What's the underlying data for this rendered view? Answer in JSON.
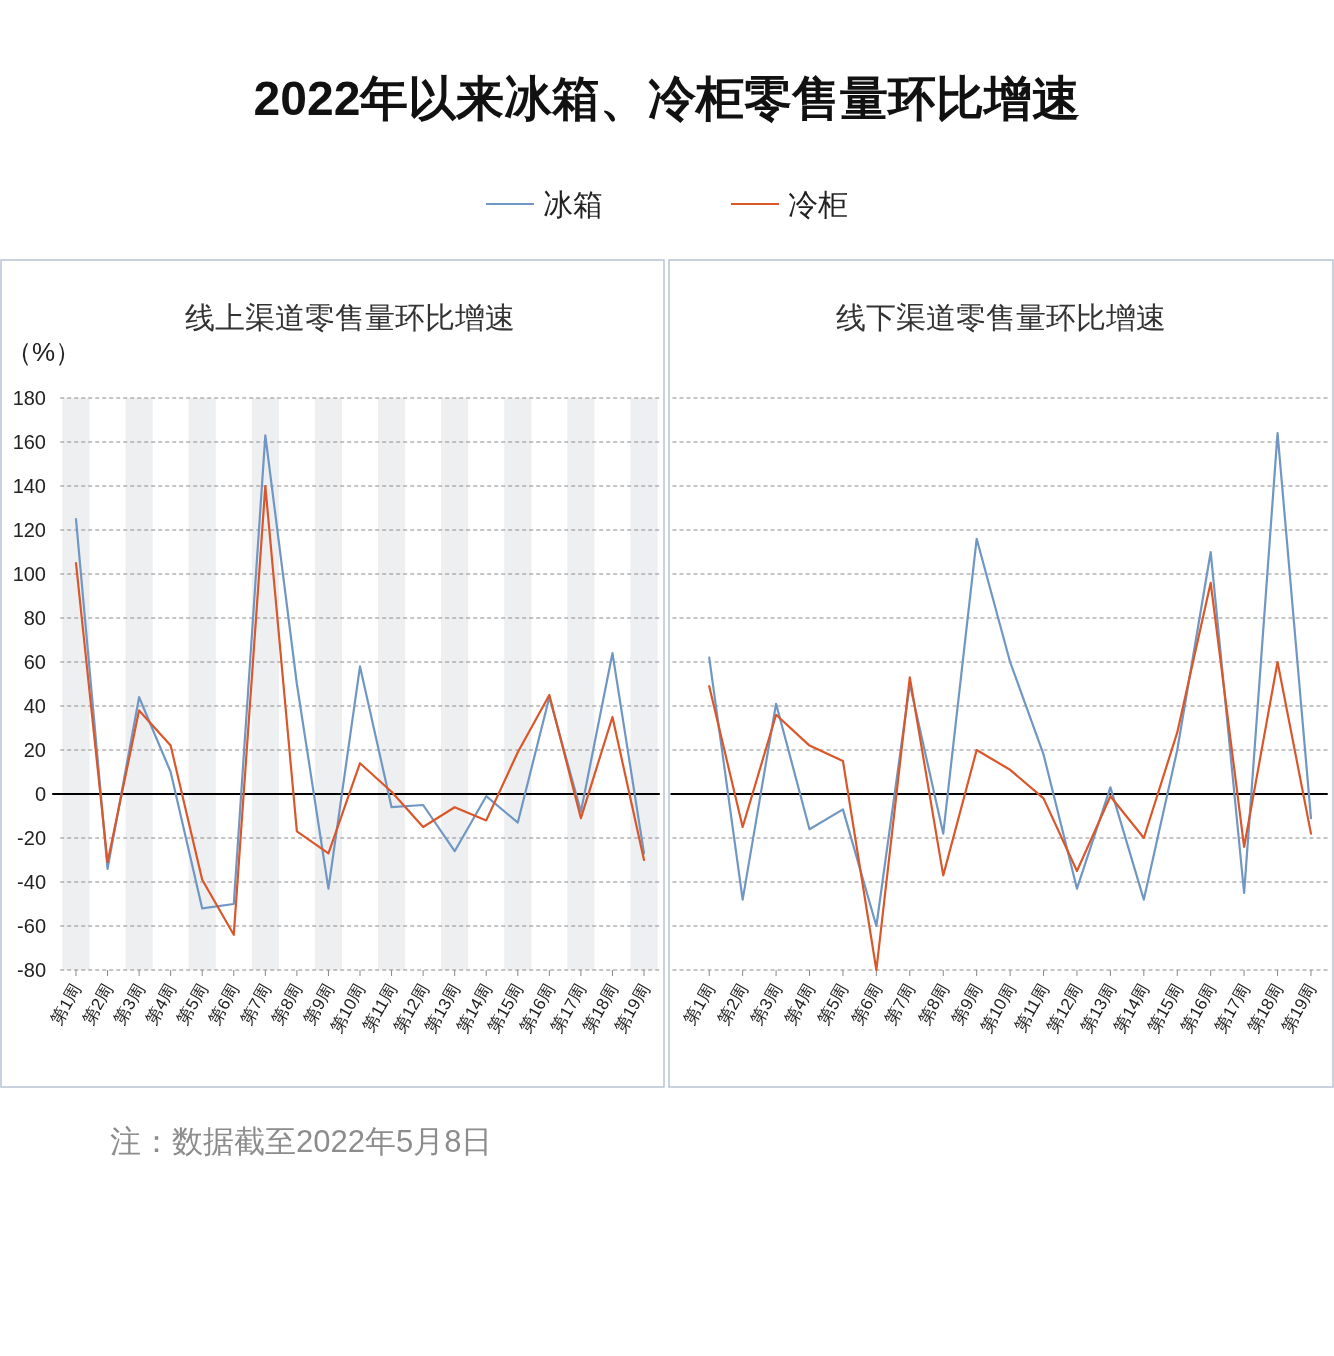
{
  "chart_data": [
    {
      "type": "line",
      "title": "2022年以来冰箱、冷柜零售量环比增速",
      "subtitle": "线上渠道零售量环比增速",
      "ylabel": "（%）",
      "legend": "top",
      "grid": "y",
      "marker": "none",
      "line_style": "solid",
      "categories": [
        "第1周",
        "第2周",
        "第3周",
        "第4周",
        "第5周",
        "第6周",
        "第7周",
        "第8周",
        "第9周",
        "第10周",
        "第11周",
        "第12周",
        "第13周",
        "第14周",
        "第15周",
        "第16周",
        "第17周",
        "第18周",
        "第19周"
      ],
      "ylim": [
        -80,
        180
      ],
      "yticks": [
        -80,
        -60,
        -40,
        -20,
        0,
        20,
        40,
        60,
        80,
        100,
        120,
        140,
        160,
        180
      ],
      "series": [
        {
          "name": "冰箱",
          "color": "#7097c3",
          "values": [
            125,
            -34,
            44,
            10,
            -52,
            -50,
            163,
            50,
            -43,
            58,
            -6,
            -5,
            -26,
            -1,
            -13,
            44,
            -8,
            64,
            -27
          ]
        },
        {
          "name": "冷柜",
          "color": "#d9572a",
          "values": [
            105,
            -31,
            38,
            22,
            -39,
            -64,
            140,
            -17,
            -27,
            14,
            1,
            -15,
            -6,
            -12,
            19,
            45,
            -11,
            35,
            -30
          ]
        }
      ],
      "ref_lines": [
        {
          "axis": "y",
          "value": 0,
          "color": "#000000"
        }
      ],
      "bands": [
        {
          "axis": "x",
          "from": "第1周",
          "to": "第1周",
          "color": "#eeeff1"
        },
        {
          "axis": "x",
          "from": "第3周",
          "to": "第3周",
          "color": "#eeeff1"
        },
        {
          "axis": "x",
          "from": "第5周",
          "to": "第5周",
          "color": "#eeeff1"
        },
        {
          "axis": "x",
          "from": "第7周",
          "to": "第7周",
          "color": "#eeeff1"
        },
        {
          "axis": "x",
          "from": "第9周",
          "to": "第9周",
          "color": "#eeeff1"
        },
        {
          "axis": "x",
          "from": "第11周",
          "to": "第11周",
          "color": "#eeeff1"
        },
        {
          "axis": "x",
          "from": "第13周",
          "to": "第13周",
          "color": "#eeeff1"
        },
        {
          "axis": "x",
          "from": "第15周",
          "to": "第15周",
          "color": "#eeeff1"
        },
        {
          "axis": "x",
          "from": "第17周",
          "to": "第17周",
          "color": "#eeeff1"
        },
        {
          "axis": "x",
          "from": "第19周",
          "to": "第19周",
          "color": "#eeeff1"
        }
      ],
      "annotations": [
        "注：数据截至2022年5月8日"
      ]
    },
    {
      "type": "line",
      "subtitle": "线下渠道零售量环比增速",
      "grid": "y",
      "marker": "none",
      "line_style": "solid",
      "tick_labels": "x",
      "categories": [
        "第1周",
        "第2周",
        "第3周",
        "第4周",
        "第5周",
        "第6周",
        "第7周",
        "第8周",
        "第9周",
        "第10周",
        "第11周",
        "第12周",
        "第13周",
        "第14周",
        "第15周",
        "第16周",
        "第17周",
        "第18周",
        "第19周"
      ],
      "ylim": [
        -80,
        180
      ],
      "series": [
        {
          "color": "#7097c3",
          "values": [
            62,
            -48,
            41,
            -16,
            -7,
            -60,
            50,
            -18,
            116,
            60,
            18,
            -43,
            3,
            -48,
            20,
            110,
            -45,
            164,
            -11
          ]
        },
        {
          "color": "#d9572a",
          "values": [
            49,
            -15,
            36,
            22,
            15,
            -80,
            53,
            -37,
            20,
            11,
            -2,
            -35,
            -1,
            -20,
            28,
            96,
            -24,
            60,
            -18
          ]
        }
      ],
      "ref_lines": [
        {
          "axis": "y",
          "value": 0,
          "color": "#000000"
        }
      ]
    }
  ]
}
